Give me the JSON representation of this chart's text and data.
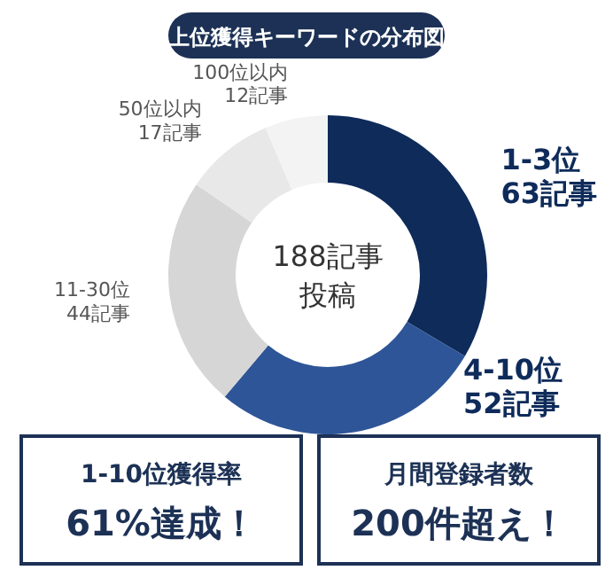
{
  "chart_data": [
    {
      "type": "donut",
      "title": "上位獲得キーワードの分布図",
      "categories": [
        "1-3位",
        "4-10位",
        "11-30位",
        "50位以内",
        "100位以内"
      ],
      "values": [
        63,
        52,
        44,
        17,
        12
      ],
      "value_labels": [
        "63記事",
        "52記事",
        "44記事",
        "17記事",
        "12記事"
      ],
      "colors": [
        "#0e2b5a",
        "#2e5597",
        "#d6d6d6",
        "#e8e8e8",
        "#f3f3f3"
      ],
      "annotations": [
        "188記事",
        "投稿"
      ]
    },
    {
      "type": "other",
      "annotations": [
        "1-10位獲得率",
        "61%達成！",
        "月間登録者数",
        "200件超え！"
      ]
    }
  ]
}
